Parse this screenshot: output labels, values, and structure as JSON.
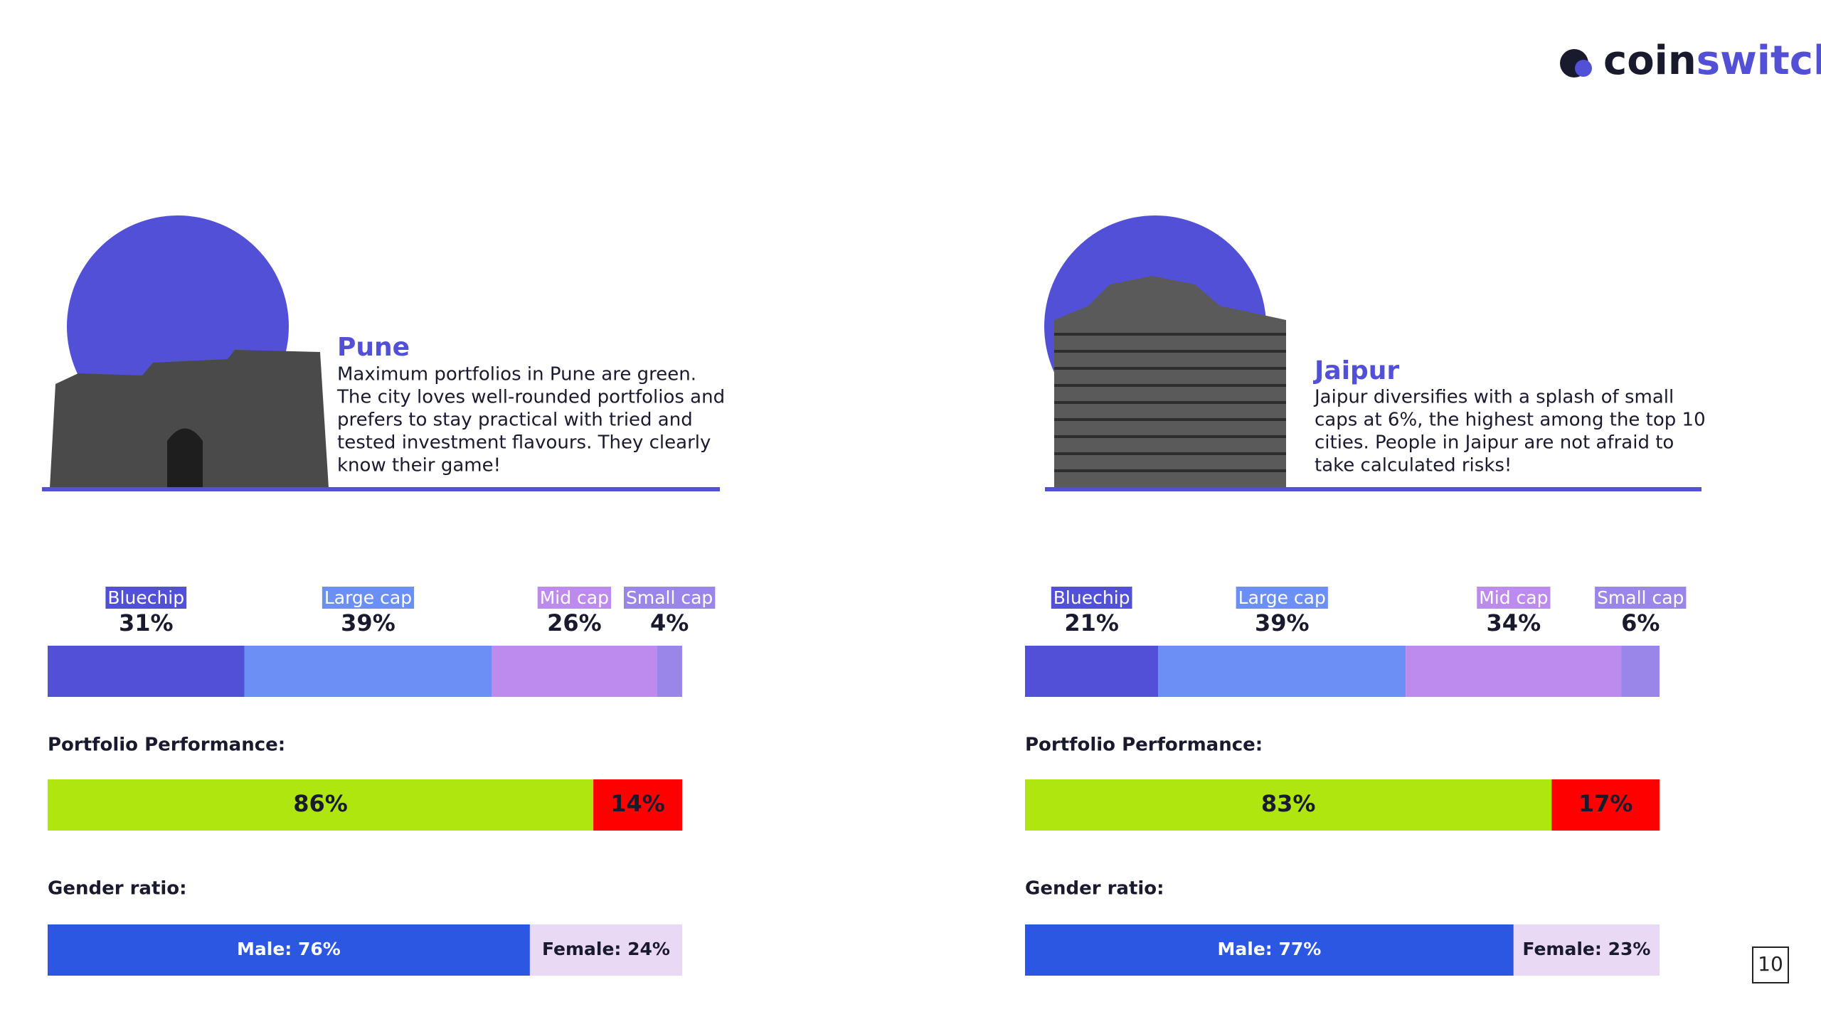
{
  "brand": {
    "part1": "coin",
    "part2": "switch"
  },
  "page_number": "10",
  "cities": [
    {
      "name": "Pune",
      "description": [
        "Maximum portfolios in Pune are green.",
        "The city loves well-rounded portfolios and",
        "prefers to stay practical with tried and",
        "tested investment flavours. They clearly",
        "know their game!"
      ],
      "allocation": {
        "categories": [
          "Bluechip",
          "Large cap",
          "Mid cap",
          "Small cap"
        ],
        "values": [
          31,
          39,
          26,
          4
        ],
        "value_labels": [
          "31%",
          "39%",
          "26%",
          "4%"
        ],
        "colors": [
          "#5350d8",
          "#6b8ff5",
          "#bd8aed",
          "#9a86e8"
        ]
      },
      "performance": {
        "title": "Portfolio Performance:",
        "values": [
          86,
          14
        ],
        "value_labels": [
          "86%",
          "14%"
        ],
        "colors": [
          "#b0e60f",
          "#ff0000"
        ]
      },
      "gender": {
        "title": "Gender ratio:",
        "values": [
          76,
          24
        ],
        "value_labels": [
          "Male: 76%",
          "Female: 24%"
        ],
        "colors": [
          "#2c57e3",
          "#ead9f5"
        ]
      }
    },
    {
      "name": "Jaipur",
      "description": [
        "Jaipur diversifies with a splash of small",
        "caps at 6%, the highest among the top 10",
        "cities. People in Jaipur are not afraid to",
        "take calculated risks!"
      ],
      "allocation": {
        "categories": [
          "Bluechip",
          "Large cap",
          "Mid cap",
          "Small cap"
        ],
        "values": [
          21,
          39,
          34,
          6
        ],
        "value_labels": [
          "21%",
          "39%",
          "34%",
          "6%"
        ],
        "colors": [
          "#5350d8",
          "#6b8ff5",
          "#bd8aed",
          "#9a86e8"
        ]
      },
      "performance": {
        "title": "Portfolio Performance:",
        "values": [
          83,
          17
        ],
        "value_labels": [
          "83%",
          "17%"
        ],
        "colors": [
          "#b0e60f",
          "#ff0000"
        ]
      },
      "gender": {
        "title": "Gender ratio:",
        "values": [
          77,
          23
        ],
        "value_labels": [
          "Male: 77%",
          "Female: 23%"
        ],
        "colors": [
          "#2c57e3",
          "#ead9f5"
        ]
      }
    }
  ]
}
